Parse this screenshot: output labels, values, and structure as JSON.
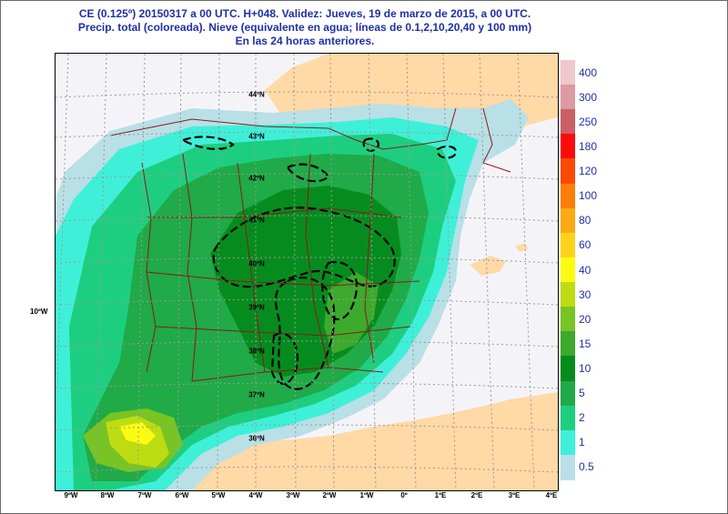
{
  "title": {
    "line1": "CE (0.125º) 20150317 a 00 UTC.  H+048. Validez: Jueves, 19 de marzo de 2015,  a  00 UTC.",
    "line2": "Precip. total (coloreada). Nieve (equivalente en agua; líneas de 0.1,2,10,20,40 y 100 mm)",
    "line3": "En las 24 horas anteriores."
  },
  "map": {
    "longitude_labels": [
      "9ºW",
      "8ºW",
      "7ºW",
      "6ºW",
      "5ºW",
      "4ºW",
      "3ºW",
      "2ºW",
      "1ºW",
      "0º",
      "1ºE",
      "2ºE",
      "3ºE",
      "4ºE"
    ],
    "latitude_labels": [
      "44ºN",
      "43ºN",
      "42ºN",
      "41ºN",
      "40ºN",
      "39ºN",
      "38ºN",
      "37ºN",
      "36ºN"
    ],
    "side_label": "10ºW"
  },
  "legend": {
    "items": [
      {
        "label": "400",
        "color": "#eec8cc"
      },
      {
        "label": "300",
        "color": "#dc9aa2"
      },
      {
        "label": "250",
        "color": "#cc5e66"
      },
      {
        "label": "180",
        "color": "#fb0c0c"
      },
      {
        "label": "120",
        "color": "#fb4a06"
      },
      {
        "label": "100",
        "color": "#fb7e06"
      },
      {
        "label": "80",
        "color": "#fbaa14"
      },
      {
        "label": "60",
        "color": "#ffd21a"
      },
      {
        "label": "40",
        "color": "#fbfb12"
      },
      {
        "label": "30",
        "color": "#bedc12"
      },
      {
        "label": "20",
        "color": "#78c424"
      },
      {
        "label": "15",
        "color": "#3caa2c"
      },
      {
        "label": "10",
        "color": "#068c1e"
      },
      {
        "label": "5",
        "color": "#20aa48"
      },
      {
        "label": "2",
        "color": "#1ece80"
      },
      {
        "label": "1",
        "color": "#3ff0d8"
      },
      {
        "label": "0.5",
        "color": "#b8e0e6"
      }
    ]
  },
  "colors": {
    "sea": "#f4f4f8",
    "land": "#ffd9a6",
    "graticule": "#9a9a9a",
    "borders": "#8b1a1a",
    "snow_contours": "#000000",
    "title_text": "#1f2fa8"
  }
}
